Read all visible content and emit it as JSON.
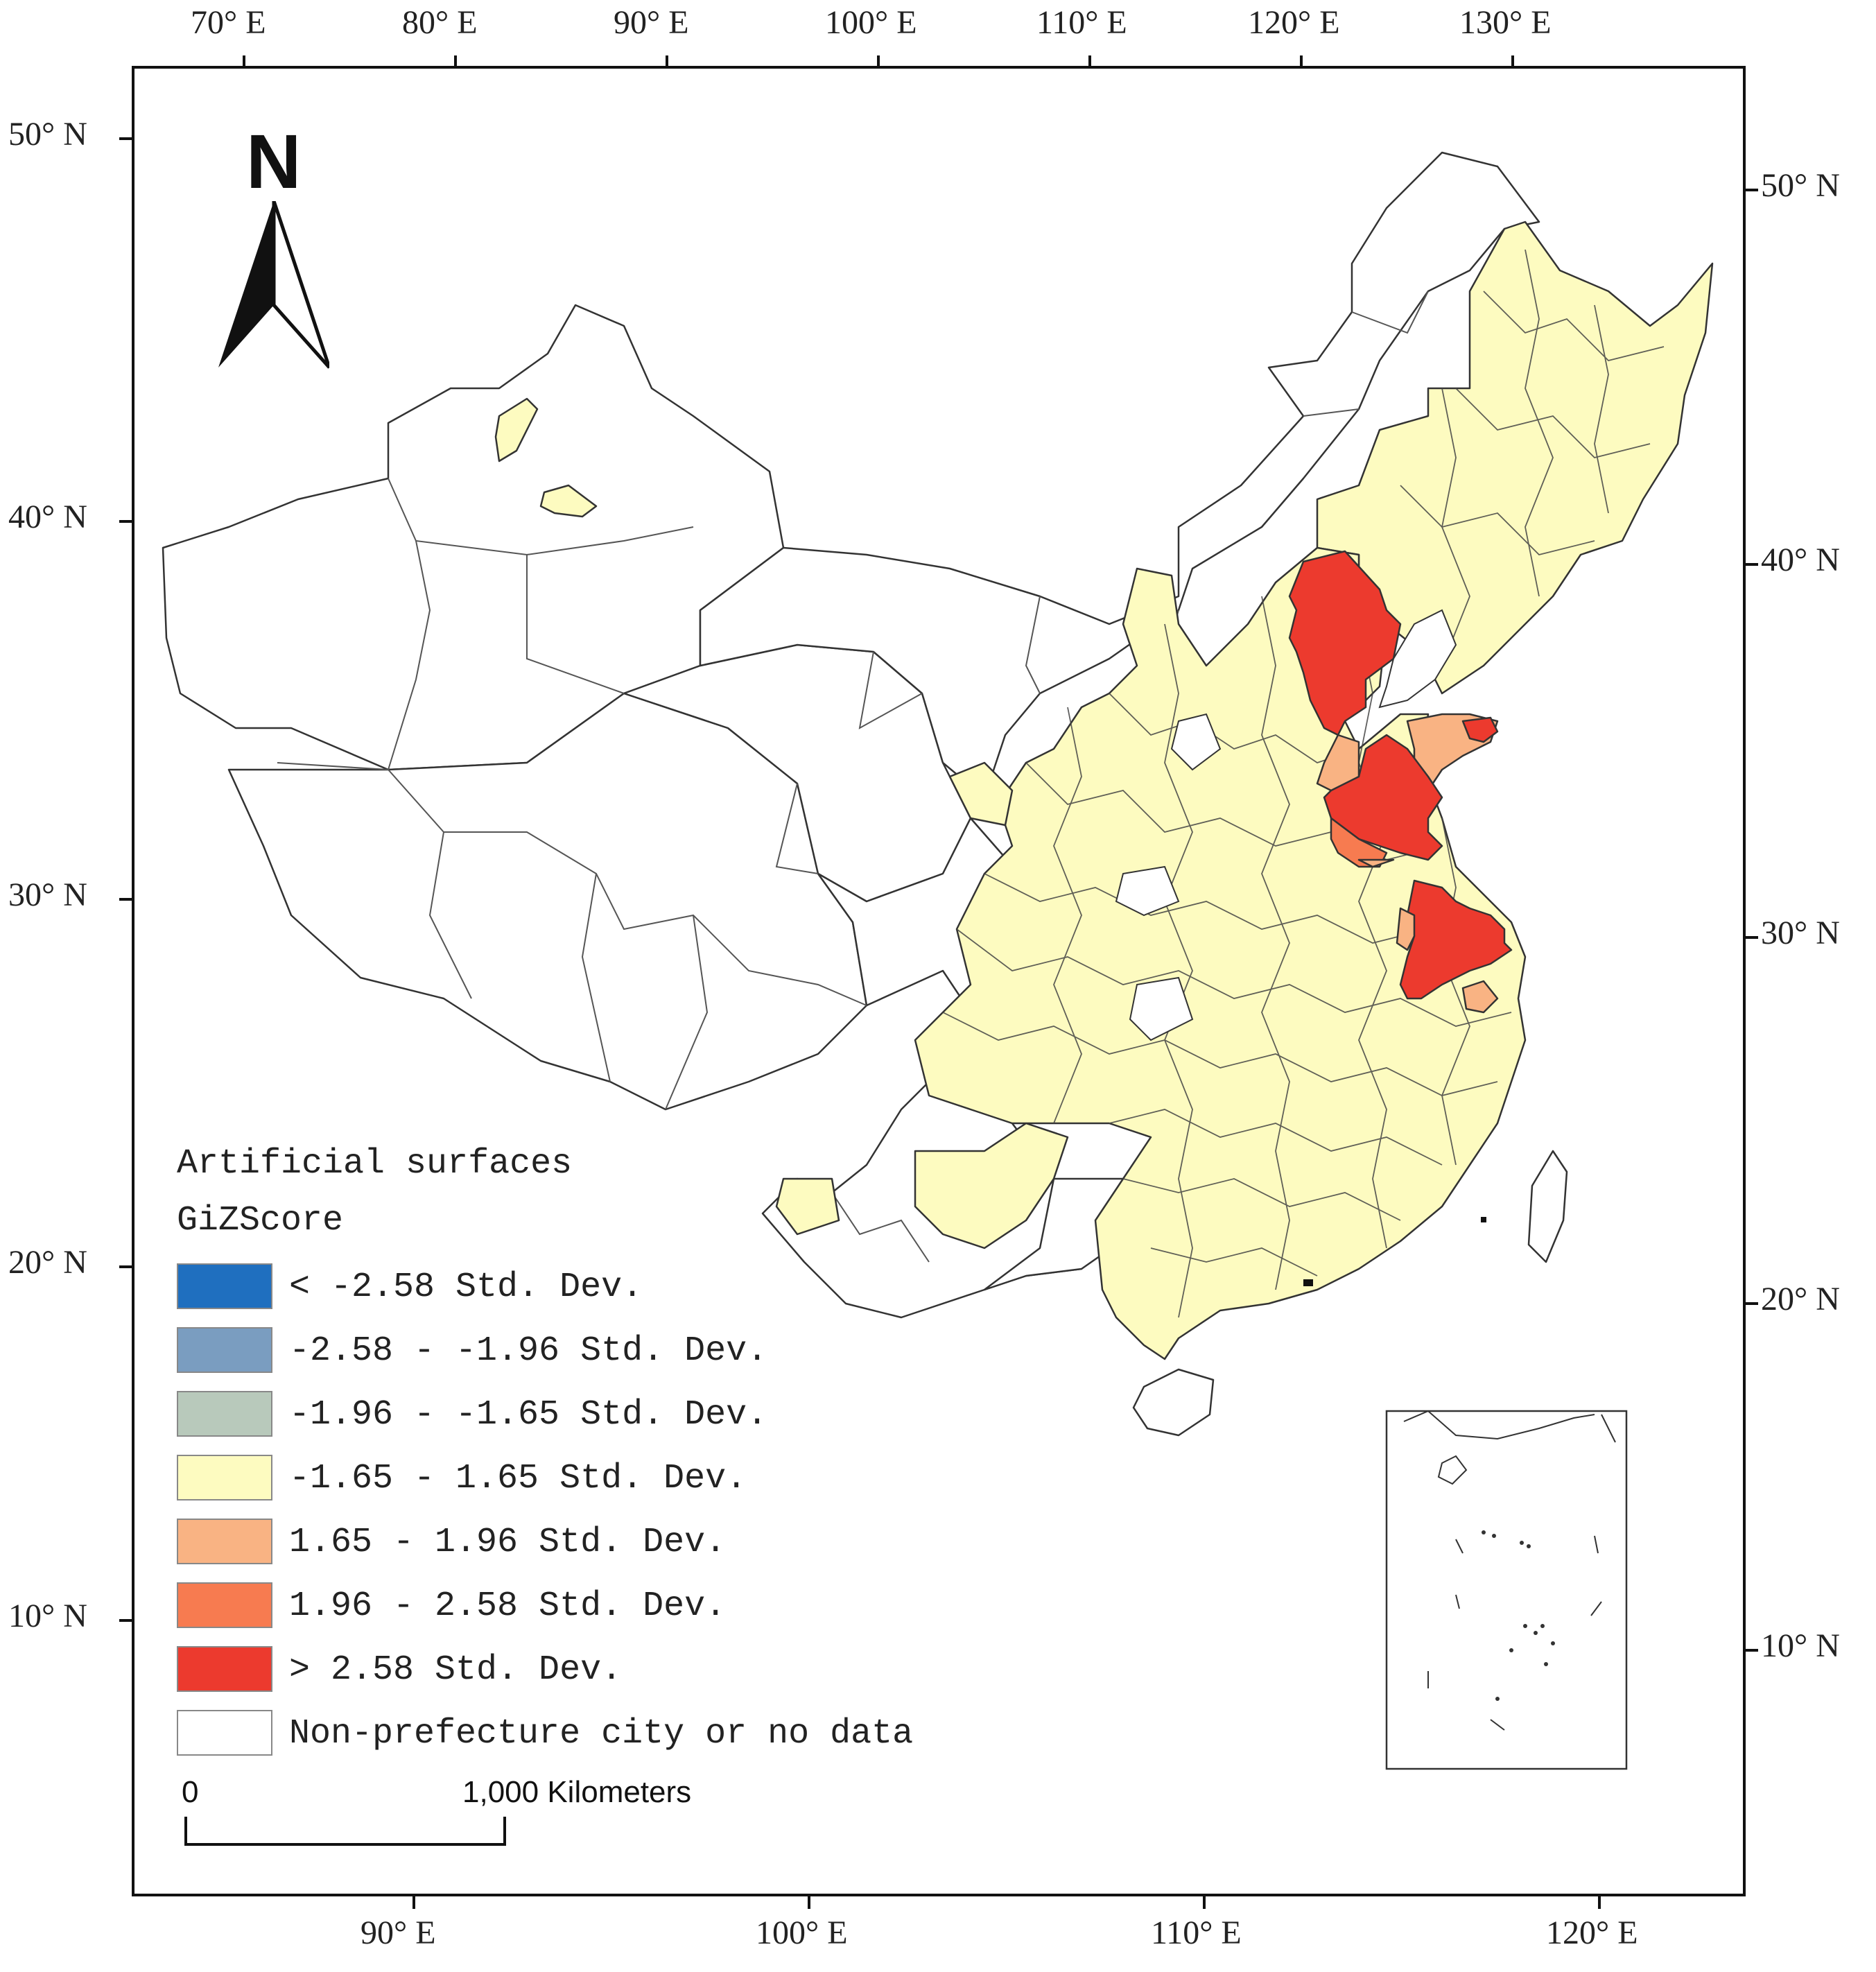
{
  "top_axis": [
    "70° E",
    "80° E",
    "90° E",
    "100° E",
    "110° E",
    "120° E",
    "130° E"
  ],
  "bottom_axis": [
    "90° E",
    "100° E",
    "110° E",
    "120° E"
  ],
  "left_axis": [
    "50° N",
    "40° N",
    "30° N",
    "20° N",
    "10° N"
  ],
  "right_axis": [
    "50° N",
    "40° N",
    "30° N",
    "20° N",
    "10° N"
  ],
  "north_label": "N",
  "legend": {
    "title1": "Artificial surfaces",
    "title2": "GiZScore",
    "items": [
      {
        "label": "< -2.58 Std. Dev.",
        "color": "#1f6fbf"
      },
      {
        "label": "-2.58 - -1.96 Std. Dev.",
        "color": "#7a9dc0"
      },
      {
        "label": "-1.96 - -1.65 Std. Dev.",
        "color": "#b8c9bb"
      },
      {
        "label": "-1.65 - 1.65 Std. Dev.",
        "color": "#fdfbc0"
      },
      {
        "label": "1.65 - 1.96 Std. Dev.",
        "color": "#f9b383"
      },
      {
        "label": "1.96 - 2.58 Std. Dev.",
        "color": "#f77b50"
      },
      {
        "label": "> 2.58 Std. Dev.",
        "color": "#ec3a2e"
      },
      {
        "label": "Non-prefecture city or no data",
        "color": "#ffffff"
      }
    ]
  },
  "scale": {
    "zero": "0",
    "end": "1,000 Kilometers"
  },
  "colors": {
    "boundary": "#333333",
    "hot": "#ec3a2e",
    "warm": "#f9b383",
    "neutral": "#fdfbc0"
  }
}
